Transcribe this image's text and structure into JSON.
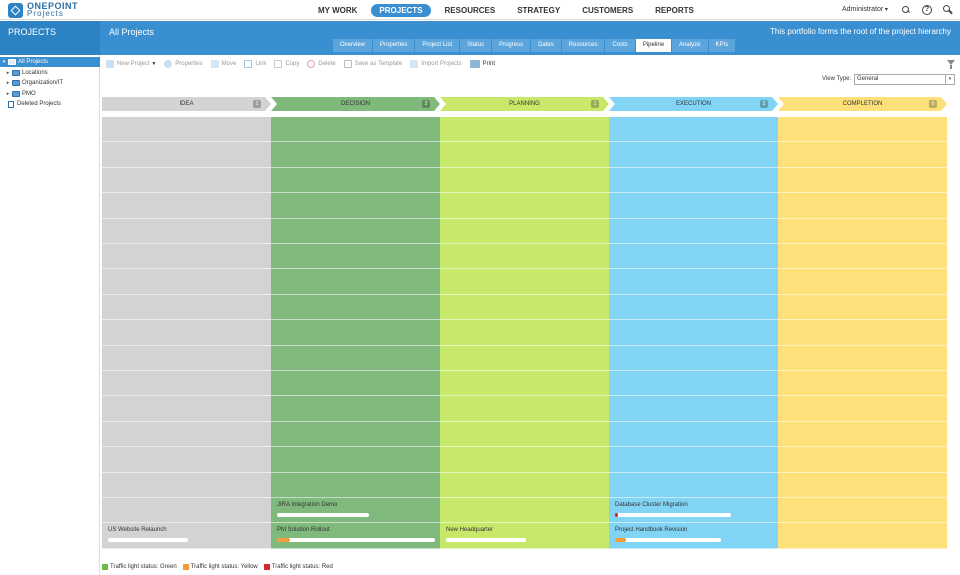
{
  "logo": {
    "line1": "ONEPOINT",
    "line2": "Projects"
  },
  "nav": [
    {
      "label": "MY WORK",
      "active": false
    },
    {
      "label": "PROJECTS",
      "active": true
    },
    {
      "label": "RESOURCES",
      "active": false
    },
    {
      "label": "STRATEGY",
      "active": false
    },
    {
      "label": "CUSTOMERS",
      "active": false
    },
    {
      "label": "REPORTS",
      "active": false
    }
  ],
  "user": "Administrator",
  "left_title": "PROJECTS",
  "page_title": "All Projects",
  "page_desc": "This portfolio forms the root of the project hierarchy",
  "tabs": [
    "Overview",
    "Properties",
    "Project List",
    "Status",
    "Progress",
    "Dates",
    "Resources",
    "Costs",
    "Pipeline",
    "Analyze",
    "KPIs"
  ],
  "active_tab": "Pipeline",
  "tree": [
    {
      "label": "All Projects",
      "arrow": "▾",
      "selected": true,
      "indent": 0
    },
    {
      "label": "Locations",
      "arrow": "▸",
      "selected": false,
      "indent": 1
    },
    {
      "label": "Organization/IT",
      "arrow": "▸",
      "selected": false,
      "indent": 1
    },
    {
      "label": "PMO",
      "arrow": "▸",
      "selected": false,
      "indent": 1
    },
    {
      "label": "Deleted Projects",
      "arrow": "",
      "selected": false,
      "indent": 1,
      "trash": true
    }
  ],
  "toolbar": {
    "new_project": "New Project",
    "properties": "Properties",
    "move": "Move",
    "link": "Link",
    "copy": "Copy",
    "delete": "Delete",
    "save_template": "Save as Template",
    "import": "Import Projects",
    "print": "Print"
  },
  "view_type_label": "View Type:",
  "view_type_value": "General",
  "stages": [
    {
      "name": "IDEA",
      "count": "1",
      "color": "#d3d3d3",
      "head": "#d3d3d3"
    },
    {
      "name": "DECISION",
      "count": "2",
      "color": "#80b97c",
      "head": "#80b97c"
    },
    {
      "name": "PLANNING",
      "count": "1",
      "color": "#c8e86a",
      "head": "#c8e86a"
    },
    {
      "name": "EXECUTION",
      "count": "2",
      "color": "#82d4f5",
      "head": "#82d4f5"
    },
    {
      "name": "COMPLETION",
      "count": "0",
      "color": "#fde07a",
      "head": "#fde07a"
    }
  ],
  "cards": [
    {
      "stage": 0,
      "row": 16,
      "title": "US Website Relaunch",
      "progress": 0.0,
      "status": "none"
    },
    {
      "stage": 1,
      "row": 15,
      "title": "JIRA Integration Demo",
      "progress": 0.0,
      "status": "none"
    },
    {
      "stage": 1,
      "row": 16,
      "title": "PM Solution Rollout",
      "progress": 0.08,
      "status": "yellow"
    },
    {
      "stage": 2,
      "row": 16,
      "title": "New Headquarter",
      "progress": 0.0,
      "status": "none"
    },
    {
      "stage": 3,
      "row": 15,
      "title": "Database Cluster Migration",
      "progress": 0.02,
      "status": "red"
    },
    {
      "stage": 3,
      "row": 16,
      "title": "Project Handbook Revision",
      "progress": 0.1,
      "status": "yellow"
    }
  ],
  "legend": [
    {
      "label": "Traffic light status: Green",
      "color": "#6dbb45"
    },
    {
      "label": "Traffic light status: Yellow",
      "color": "#f49b3c"
    },
    {
      "label": "Traffic light status: Red",
      "color": "#d9262a"
    }
  ],
  "status_colors": {
    "yellow": "#f49b3c",
    "red": "#d9262a",
    "green": "#6dbb45"
  }
}
